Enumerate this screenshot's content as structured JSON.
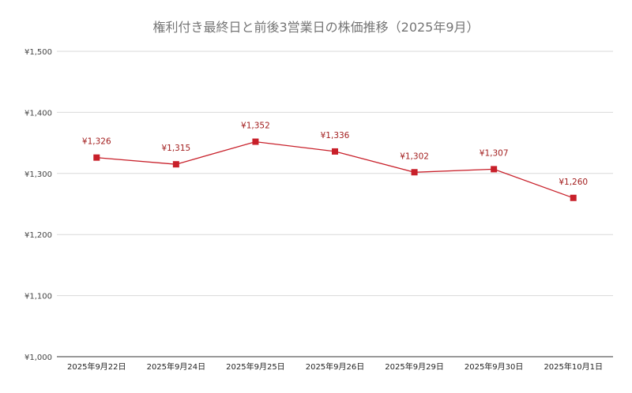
{
  "chart_data": {
    "type": "line",
    "title": "権利付き最終日と前後3営業日の株価推移（2025年9月）",
    "xlabel": "",
    "ylabel": "",
    "categories": [
      "2025年9月22日",
      "2025年9月24日",
      "2025年9月25日",
      "2025年9月26日",
      "2025年9月29日",
      "2025年9月30日",
      "2025年10月1日"
    ],
    "series": [
      {
        "values": [
          1326,
          1315,
          1352,
          1336,
          1302,
          1307,
          1260
        ],
        "data_labels": [
          "¥1,326",
          "¥1,315",
          "¥1,352",
          "¥1,336",
          "¥1,302",
          "¥1,307",
          "¥1,260"
        ],
        "color": "#c8202a",
        "marker": "square"
      }
    ],
    "ylim": [
      1000,
      1500
    ],
    "yticks": [
      1000,
      1100,
      1200,
      1300,
      1400,
      1500
    ],
    "ytick_labels": [
      "¥1,000",
      "¥1,100",
      "¥1,200",
      "¥1,300",
      "¥1,400",
      "¥1,500"
    ],
    "grid": true,
    "legend": "none",
    "colors": {
      "line": "#c8202a",
      "grid": "#d9d9d9",
      "title": "#757575"
    }
  }
}
